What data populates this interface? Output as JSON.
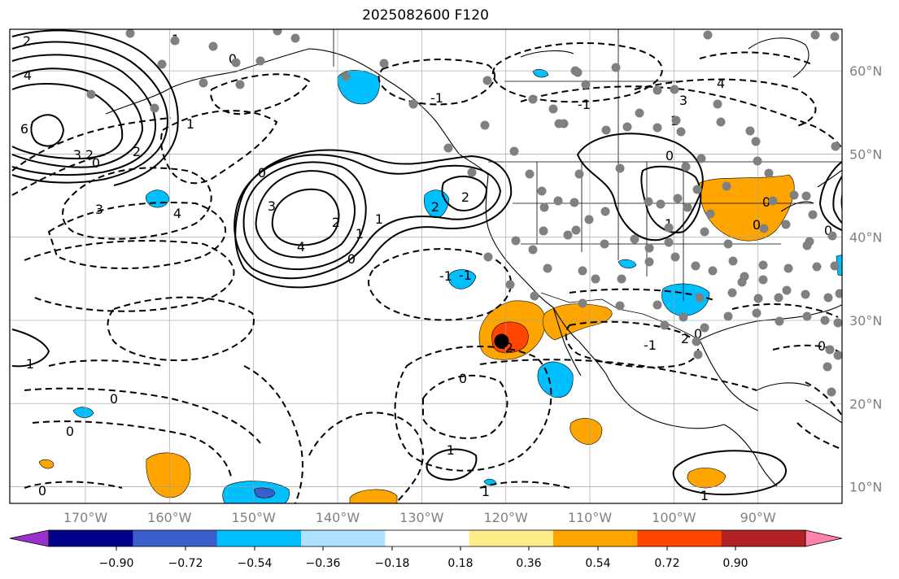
{
  "title": "2025082600 F120",
  "map": {
    "type": "forecast-anomaly-map",
    "projection": "plate-carree",
    "lon_range": [
      -179,
      -80
    ],
    "lat_range": [
      8,
      65
    ],
    "gridlines": true,
    "lon_ticks": [
      {
        "lon": -170,
        "label": "170°W"
      },
      {
        "lon": -160,
        "label": "160°W"
      },
      {
        "lon": -150,
        "label": "150°W"
      },
      {
        "lon": -140,
        "label": "140°W"
      },
      {
        "lon": -130,
        "label": "130°W"
      },
      {
        "lon": -120,
        "label": "120°W"
      },
      {
        "lon": -110,
        "label": "110°W"
      },
      {
        "lon": -100,
        "label": "100°W"
      },
      {
        "lon": -90,
        "label": "90°W"
      }
    ],
    "lat_ticks": [
      {
        "lat": 60,
        "label": "60°N"
      },
      {
        "lat": 50,
        "label": "50°N"
      },
      {
        "lat": 40,
        "label": "40°N"
      },
      {
        "lat": 30,
        "label": "30°N"
      },
      {
        "lat": 20,
        "label": "20°N"
      },
      {
        "lat": 10,
        "label": "10°N"
      }
    ],
    "contour_labels": [
      "2",
      "1",
      "4",
      "6",
      "3",
      "2",
      "1",
      "2",
      "3",
      "0",
      "4",
      "-1",
      "0",
      "0",
      "3",
      "4",
      "2",
      "1",
      "0",
      "2",
      "2",
      "1",
      "-1",
      "-1",
      "2",
      "1",
      "0",
      "1",
      "0",
      "3",
      "4",
      "-1",
      "0",
      "-1",
      "1",
      "0",
      "0",
      "0",
      "-1",
      "-2",
      "0",
      "1",
      "1",
      "0",
      "0",
      "0"
    ],
    "marker": {
      "lat": 27.5,
      "lon": -120.5,
      "color": "#000000"
    }
  },
  "colorbar": {
    "orientation": "horizontal",
    "extend": "both",
    "colors": [
      "#9932cc",
      "#00008b",
      "#3a5fcd",
      "#00bfff",
      "#b0e2ff",
      "#ffffff",
      "#ffec8b",
      "#ffa500",
      "#ff4500",
      "#b22222",
      "#ff82ab"
    ],
    "tick_labels": [
      "−0.90",
      "−0.72",
      "−0.54",
      "−0.36",
      "−0.18",
      "0.18",
      "0.36",
      "0.54",
      "0.72",
      "0.90"
    ]
  }
}
